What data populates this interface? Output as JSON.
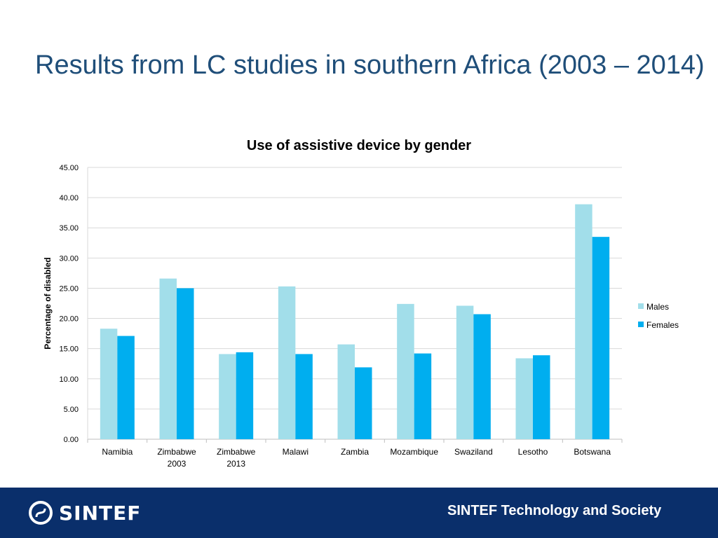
{
  "slide": {
    "title": "Results from LC studies in southern Africa (2003 – 2014)"
  },
  "footer": {
    "logo_text": "SINTEF",
    "org_text": "SINTEF Technology and Society"
  },
  "colors": {
    "males": "#a2deea",
    "females": "#00aeef",
    "title": "#1f4e79",
    "footer_bg": "#0a2f6b"
  },
  "chart_data": {
    "type": "bar",
    "title": "Use of assistive device by gender",
    "xlabel": "",
    "ylabel": "Percentage of disabled",
    "ylim": [
      0,
      45
    ],
    "yticks": [
      "0.00",
      "5.00",
      "10.00",
      "15.00",
      "20.00",
      "25.00",
      "30.00",
      "35.00",
      "40.00",
      "45.00"
    ],
    "grid": true,
    "legend_position": "right",
    "categories": [
      [
        "Namibia"
      ],
      [
        "Zimbabwe",
        "2003"
      ],
      [
        "Zimbabwe",
        "2013"
      ],
      [
        "Malawi"
      ],
      [
        "Zambia"
      ],
      [
        "Mozambique"
      ],
      [
        "Swaziland"
      ],
      [
        "Lesotho"
      ],
      [
        "Botswana"
      ]
    ],
    "series": [
      {
        "name": "Males",
        "values": [
          18.3,
          26.6,
          14.1,
          25.3,
          15.7,
          22.4,
          22.1,
          13.4,
          38.9
        ]
      },
      {
        "name": "Females",
        "values": [
          17.1,
          25.0,
          14.4,
          14.1,
          11.9,
          14.2,
          20.7,
          13.9,
          33.5
        ]
      }
    ]
  }
}
